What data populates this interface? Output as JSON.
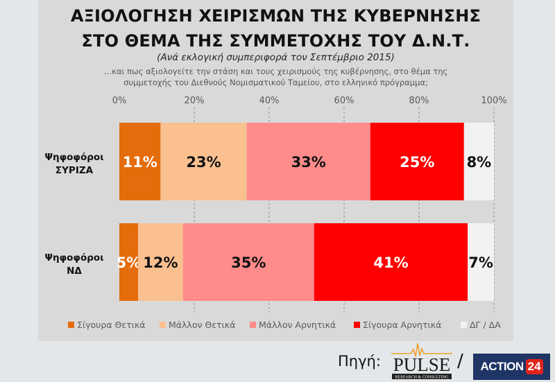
{
  "header": {
    "title_line1": "ΑΞΙΟΛΟΓΗΣΗ ΧΕΙΡΙΣΜΩΝ ΤΗΣ ΚΥΒΕΡΝΗΣΗΣ",
    "title_line2": "ΣΤΟ ΘΕΜΑ ΤΗΣ ΣΥΜΜΕΤΟΧΗΣ ΤΟΥ Δ.Ν.Τ.",
    "subtitle": "(Ανά εκλογική συμπεριφορά τον Σεπτέμβριο 2015)",
    "question_line1": "…και πως αξιολογείτε την στάση και τους χειρισμούς της κυβέρνησης, στο θέμα της",
    "question_line2": "συμμετοχής του Διεθνούς Νομισματικού Ταμείου, στο ελληνικό πρόγραμμα;"
  },
  "chart_data": {
    "type": "bar",
    "orientation": "horizontal",
    "stacked": true,
    "title": "ΑΞΙΟΛΟΓΗΣΗ ΧΕΙΡΙΣΜΩΝ ΤΗΣ ΚΥΒΕΡΝΗΣΗΣ ΣΤΟ ΘΕΜΑ ΤΗΣ ΣΥΜΜΕΤΟΧΗΣ ΤΟΥ Δ.Ν.Τ.",
    "categories": [
      {
        "line1": "Ψηφοφόροι",
        "line2": "ΣΥΡΙΖΑ"
      },
      {
        "line1": "Ψηφοφόροι",
        "line2": "ΝΔ"
      }
    ],
    "series": [
      {
        "name": "Σίγουρα Θετικά",
        "color": "#e46c0a",
        "label_color": "#ffffff",
        "values": [
          11,
          5
        ],
        "labels": [
          "11%",
          "5%"
        ]
      },
      {
        "name": "Μάλλον Θετικά",
        "color": "#fac090",
        "label_color": "#111111",
        "values": [
          23,
          12
        ],
        "labels": [
          "23%",
          "12%"
        ]
      },
      {
        "name": "Μάλλον Αρνητικά",
        "color": "#ff8b8b",
        "label_color": "#111111",
        "values": [
          33,
          35
        ],
        "labels": [
          "33%",
          "35%"
        ]
      },
      {
        "name": "Σίγουρα Αρνητικά",
        "color": "#ff0000",
        "label_color": "#ffffff",
        "values": [
          25,
          41
        ],
        "labels": [
          "25%",
          "41%"
        ]
      },
      {
        "name": "ΔΓ / ΔΑ",
        "color": "#f2f2f2",
        "label_color": "#111111",
        "values": [
          8,
          7
        ],
        "labels": [
          "8%",
          "7%"
        ]
      }
    ],
    "xlim": [
      0,
      100
    ],
    "xticks": [
      "0%",
      "20%",
      "40%",
      "60%",
      "80%",
      "100%"
    ],
    "xtick_values": [
      0,
      20,
      40,
      60,
      80,
      100
    ],
    "grid": "dashed vertical",
    "legend": "bottom",
    "xlabel": "",
    "ylabel": ""
  },
  "footer": {
    "source_label": "Πηγή:",
    "pulse_logo": "PULSE",
    "pulse_tagline": "RESEARCH & CONSULTING",
    "separator": "/",
    "action_logo_word": "ACTION",
    "action_logo_num": "24",
    "pulse_accent": "#f0a030",
    "action_bg": "#1f3566",
    "action_red": "#e2231a"
  }
}
